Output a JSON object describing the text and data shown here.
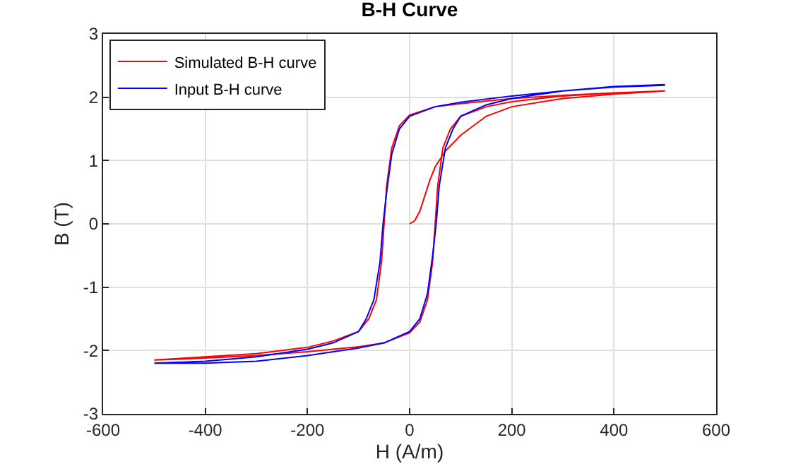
{
  "chart_data": {
    "type": "line",
    "title": "B-H Curve",
    "xlabel": "H (A/m)",
    "ylabel": "B (T)",
    "xlim": [
      -600,
      600
    ],
    "xticks": [
      -600,
      -400,
      -200,
      0,
      200,
      400,
      600
    ],
    "ylim": [
      -3,
      3
    ],
    "yticks": [
      -3,
      -2,
      -1,
      0,
      1,
      2,
      3
    ],
    "grid": true,
    "legend": "top left",
    "marker": "none",
    "line_style": "solid",
    "series": [
      {
        "name": "Simulated B-H curve",
        "color": "#ff0000",
        "x": [
          0,
          10,
          20,
          30,
          40,
          50,
          70,
          100,
          150,
          200,
          300,
          400,
          500,
          400,
          300,
          200,
          100,
          50,
          0,
          -20,
          -35,
          -45,
          -50,
          -55,
          -65,
          -80,
          -100,
          -150,
          -200,
          -300,
          -400,
          -500,
          -400,
          -300,
          -200,
          -100,
          -50,
          0,
          20,
          35,
          45,
          50,
          55,
          65,
          80,
          100,
          150,
          200,
          300,
          400,
          500
        ],
        "values": [
          0,
          0.05,
          0.2,
          0.45,
          0.7,
          0.9,
          1.15,
          1.4,
          1.7,
          1.85,
          1.98,
          2.05,
          2.1,
          2.07,
          2.03,
          1.98,
          1.9,
          1.85,
          1.72,
          1.55,
          1.2,
          0.6,
          0,
          -0.6,
          -1.2,
          -1.5,
          -1.7,
          -1.85,
          -1.95,
          -2.05,
          -2.1,
          -2.15,
          -2.12,
          -2.08,
          -2.02,
          -1.94,
          -1.88,
          -1.72,
          -1.55,
          -1.2,
          -0.6,
          0,
          0.6,
          1.2,
          1.5,
          1.7,
          1.85,
          1.93,
          2.02,
          2.07,
          2.1
        ]
      },
      {
        "name": "Input B-H curve",
        "color": "#0000ff",
        "x": [
          500,
          400,
          300,
          200,
          100,
          50,
          0,
          -20,
          -35,
          -45,
          -52,
          -58,
          -70,
          -85,
          -100,
          -150,
          -200,
          -300,
          -400,
          -500,
          -400,
          -300,
          -200,
          -100,
          -50,
          0,
          20,
          35,
          45,
          52,
          58,
          70,
          85,
          100,
          150,
          200,
          300,
          400,
          500
        ],
        "values": [
          2.2,
          2.17,
          2.1,
          2.02,
          1.92,
          1.85,
          1.7,
          1.5,
          1.1,
          0.5,
          0,
          -0.6,
          -1.2,
          -1.5,
          -1.7,
          -1.88,
          -1.98,
          -2.1,
          -2.17,
          -2.2,
          -2.2,
          -2.17,
          -2.08,
          -1.96,
          -1.88,
          -1.7,
          -1.5,
          -1.1,
          -0.5,
          0,
          0.6,
          1.2,
          1.5,
          1.7,
          1.88,
          1.98,
          2.1,
          2.16,
          2.19
        ]
      }
    ]
  }
}
